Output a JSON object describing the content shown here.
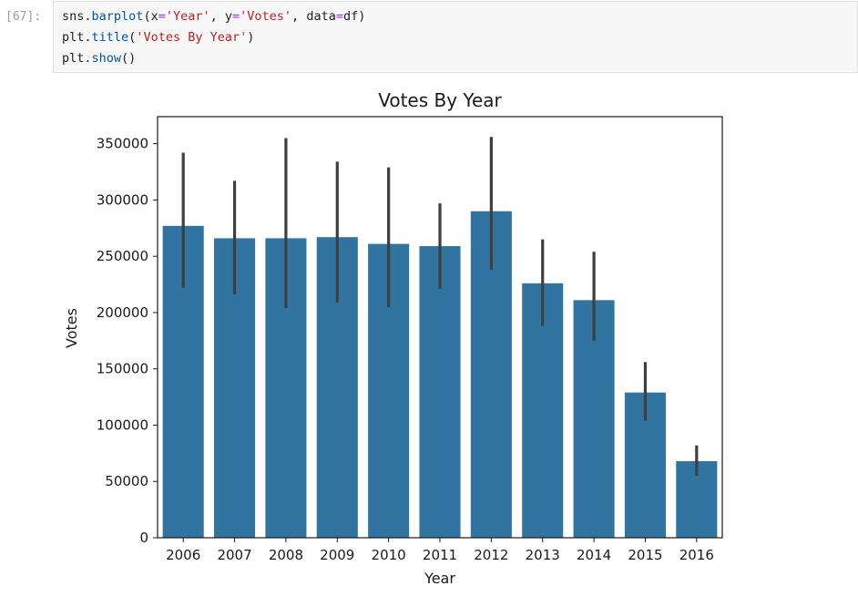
{
  "cell": {
    "prompt": "[67]:",
    "code_lines": [
      {
        "parts": [
          {
            "t": "sns",
            "c": "tok-fn"
          },
          {
            "t": ".",
            "c": "tok-fn"
          },
          {
            "t": "barplot",
            "c": "tok-attr"
          },
          {
            "t": "(x",
            "c": "tok-fn"
          },
          {
            "t": "=",
            "c": "tok-eq"
          },
          {
            "t": "'Year'",
            "c": "tok-str"
          },
          {
            "t": ", y",
            "c": "tok-fn"
          },
          {
            "t": "=",
            "c": "tok-eq"
          },
          {
            "t": "'Votes'",
            "c": "tok-str"
          },
          {
            "t": ", data",
            "c": "tok-fn"
          },
          {
            "t": "=",
            "c": "tok-eq"
          },
          {
            "t": "df)",
            "c": "tok-fn"
          }
        ]
      },
      {
        "parts": [
          {
            "t": "plt",
            "c": "tok-fn"
          },
          {
            "t": ".",
            "c": "tok-fn"
          },
          {
            "t": "title",
            "c": "tok-attr"
          },
          {
            "t": "(",
            "c": "tok-fn"
          },
          {
            "t": "'Votes By Year'",
            "c": "tok-str"
          },
          {
            "t": ")",
            "c": "tok-fn"
          }
        ]
      },
      {
        "parts": [
          {
            "t": "plt",
            "c": "tok-fn"
          },
          {
            "t": ".",
            "c": "tok-fn"
          },
          {
            "t": "show",
            "c": "tok-attr"
          },
          {
            "t": "()",
            "c": "tok-fn"
          }
        ]
      }
    ]
  },
  "chart_data": {
    "type": "bar",
    "title": "Votes By Year",
    "xlabel": "Year",
    "ylabel": "Votes",
    "categories": [
      "2006",
      "2007",
      "2008",
      "2009",
      "2010",
      "2011",
      "2012",
      "2013",
      "2014",
      "2015",
      "2016"
    ],
    "values": [
      277000,
      266000,
      266000,
      267000,
      261000,
      259000,
      290000,
      226000,
      211000,
      129000,
      68000
    ],
    "error_low": [
      222000,
      216000,
      204000,
      209000,
      205000,
      221000,
      238000,
      188000,
      175000,
      104000,
      55000
    ],
    "error_high": [
      342000,
      317000,
      355000,
      334000,
      329000,
      297000,
      356000,
      265000,
      254000,
      156000,
      82000
    ],
    "ylim": [
      0,
      374000
    ],
    "yticks": [
      0,
      50000,
      100000,
      150000,
      200000,
      250000,
      300000,
      350000
    ],
    "ytick_labels": [
      "0",
      "50000",
      "100000",
      "150000",
      "200000",
      "250000",
      "300000",
      "350000"
    ],
    "bar_color": "#3274a1",
    "error_color": "#3f3f3f",
    "grid": false,
    "legend": "none"
  }
}
